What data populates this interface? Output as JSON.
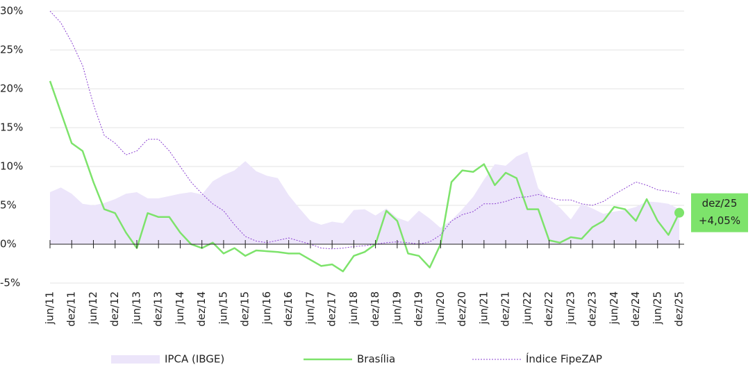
{
  "chart_data": {
    "type": "line",
    "categories": [
      "jun/11",
      null,
      "dez/11",
      null,
      "jun/12",
      null,
      "dez/12",
      null,
      "jun/13",
      null,
      "dez/13",
      null,
      "jun/14",
      null,
      "dez/14",
      null,
      "jun/15",
      null,
      "dez/15",
      null,
      "jun/16",
      null,
      "dez/16",
      null,
      "jun/17",
      null,
      "dez/17",
      null,
      "jun/18",
      null,
      "dez/18",
      null,
      "jun/19",
      null,
      "dez/19",
      null,
      "jun/20",
      null,
      "dez/20",
      null,
      "jun/21",
      null,
      "dez/21",
      null,
      "jun/22",
      null,
      "dez/22",
      null,
      "jun/23",
      null,
      "dez/23",
      null,
      "jun/24",
      null,
      "dez/24",
      null,
      "jun/25",
      null,
      "dez/25"
    ],
    "series": [
      {
        "name": "IPCA (IBGE)",
        "kind": "area",
        "color": "#ece5fa",
        "values": [
          6.7,
          7.3,
          6.5,
          5.2,
          5.0,
          5.3,
          5.8,
          6.5,
          6.7,
          5.9,
          5.9,
          6.2,
          6.5,
          6.7,
          6.4,
          8.1,
          8.9,
          9.5,
          10.7,
          9.4,
          8.8,
          8.5,
          6.3,
          4.6,
          3.0,
          2.5,
          2.9,
          2.7,
          4.4,
          4.5,
          3.7,
          4.6,
          3.4,
          2.9,
          4.3,
          3.3,
          2.1,
          3.1,
          4.5,
          6.1,
          8.3,
          10.3,
          10.1,
          11.3,
          11.9,
          7.2,
          5.8,
          4.7,
          3.2,
          5.2,
          4.6,
          3.9,
          4.2,
          4.4,
          4.8,
          5.5,
          5.4,
          5.2,
          4.5
        ]
      },
      {
        "name": "Brasília",
        "kind": "line",
        "color": "#7de36b",
        "values": [
          21,
          17,
          13,
          12,
          8,
          4.5,
          4,
          1.5,
          -0.5,
          4,
          3.5,
          3.5,
          1.5,
          0,
          -0.5,
          0.2,
          -1.2,
          -0.5,
          -1.5,
          -0.8,
          -0.9,
          -1,
          -1.2,
          -1.2,
          -2,
          -2.8,
          -2.6,
          -3.5,
          -1.5,
          -1,
          0,
          4.3,
          3,
          -1.2,
          -1.5,
          -3,
          0,
          8,
          9.5,
          9.3,
          10.3,
          7.6,
          9.2,
          8.5,
          4.5,
          4.5,
          0.5,
          0.2,
          0.9,
          0.7,
          2.2,
          3,
          4.8,
          4.5,
          3,
          5.8,
          3,
          1.2,
          4.05
        ],
        "value_labels": [
          null,
          null,
          null,
          null,
          null,
          null,
          null,
          null,
          null,
          null,
          null,
          null,
          null,
          null,
          null,
          null,
          null,
          null,
          null,
          null,
          null,
          null,
          null,
          null,
          null,
          null,
          null,
          null,
          null,
          null,
          null,
          null,
          null,
          null,
          null,
          null,
          null,
          null,
          null,
          null,
          null,
          null,
          null,
          null,
          null,
          null,
          null,
          null,
          null,
          null,
          null,
          null,
          null,
          null,
          null,
          null,
          null,
          null,
          "+4,05%"
        ]
      },
      {
        "name": "Índice FipeZAP",
        "kind": "line",
        "dashed": true,
        "color": "#8a3fd1",
        "values": [
          30,
          28.5,
          26,
          23,
          18,
          14,
          13,
          11.5,
          12,
          13.5,
          13.5,
          12,
          10,
          8,
          6.5,
          5.2,
          4.3,
          2.5,
          1,
          0.4,
          0.2,
          0.5,
          0.8,
          0.4,
          0,
          -0.5,
          -0.6,
          -0.5,
          -0.3,
          -0.2,
          0,
          0.2,
          0.3,
          0.2,
          0,
          0.3,
          1.2,
          3,
          3.8,
          4.2,
          5.2,
          5.2,
          5.5,
          6,
          6.1,
          6.4,
          6,
          5.7,
          5.7,
          5.2,
          5,
          5.5,
          6.4,
          7.2,
          8,
          7.6,
          7,
          6.8,
          6.5
        ]
      }
    ],
    "ylim": [
      -5,
      30
    ],
    "yticks": [
      {
        "value": -5,
        "label": "-5%"
      },
      {
        "value": 0,
        "label": "0%"
      },
      {
        "value": 5,
        "label": "5%"
      },
      {
        "value": 10,
        "label": "10%"
      },
      {
        "value": 15,
        "label": "15%"
      },
      {
        "value": 20,
        "label": "20%"
      },
      {
        "value": 25,
        "label": "25%"
      },
      {
        "value": 30,
        "label": "30%"
      }
    ],
    "grid": true
  }
}
